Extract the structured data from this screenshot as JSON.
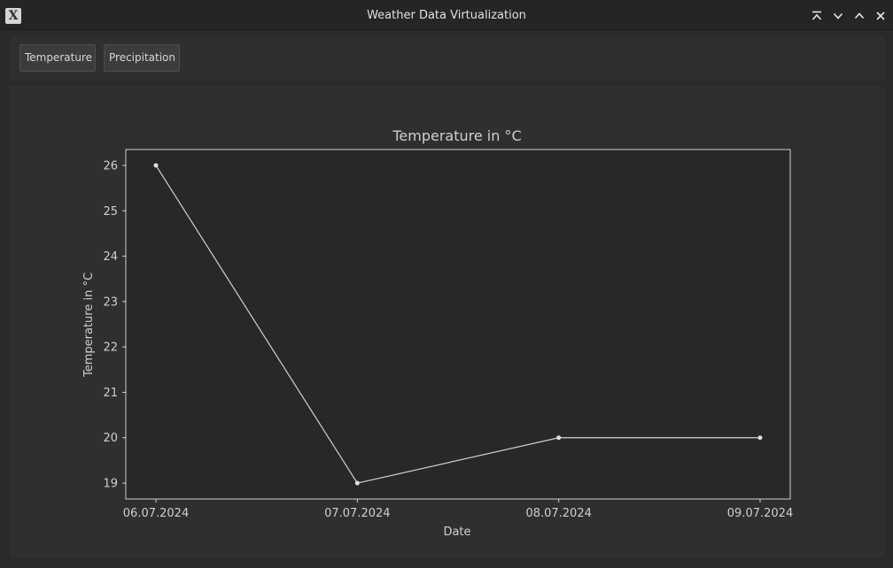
{
  "window": {
    "title": "Weather Data Virtualization",
    "app_icon_glyph": "X",
    "controls": [
      "keep-above-icon",
      "minimize-icon",
      "maximize-icon",
      "close-icon"
    ]
  },
  "toolbar": {
    "temperature_label": "Temperature",
    "precipitation_label": "Precipitation"
  },
  "colors": {
    "background": "#2a2a2a",
    "panel": "#2f2f2f",
    "plot_area": "#282828",
    "line": "#d0d0d0",
    "text": "#dcdcdc"
  },
  "chart_data": {
    "type": "line",
    "title": "Temperature in °C",
    "xlabel": "Date",
    "ylabel": "Temperature in °C",
    "categories": [
      "06.07.2024",
      "07.07.2024",
      "08.07.2024",
      "09.07.2024"
    ],
    "values": [
      26,
      19,
      20,
      20
    ],
    "yticks": [
      19,
      20,
      21,
      22,
      23,
      24,
      25,
      26
    ],
    "ylim": [
      18.65,
      26.35
    ],
    "grid": false,
    "legend": "none"
  }
}
